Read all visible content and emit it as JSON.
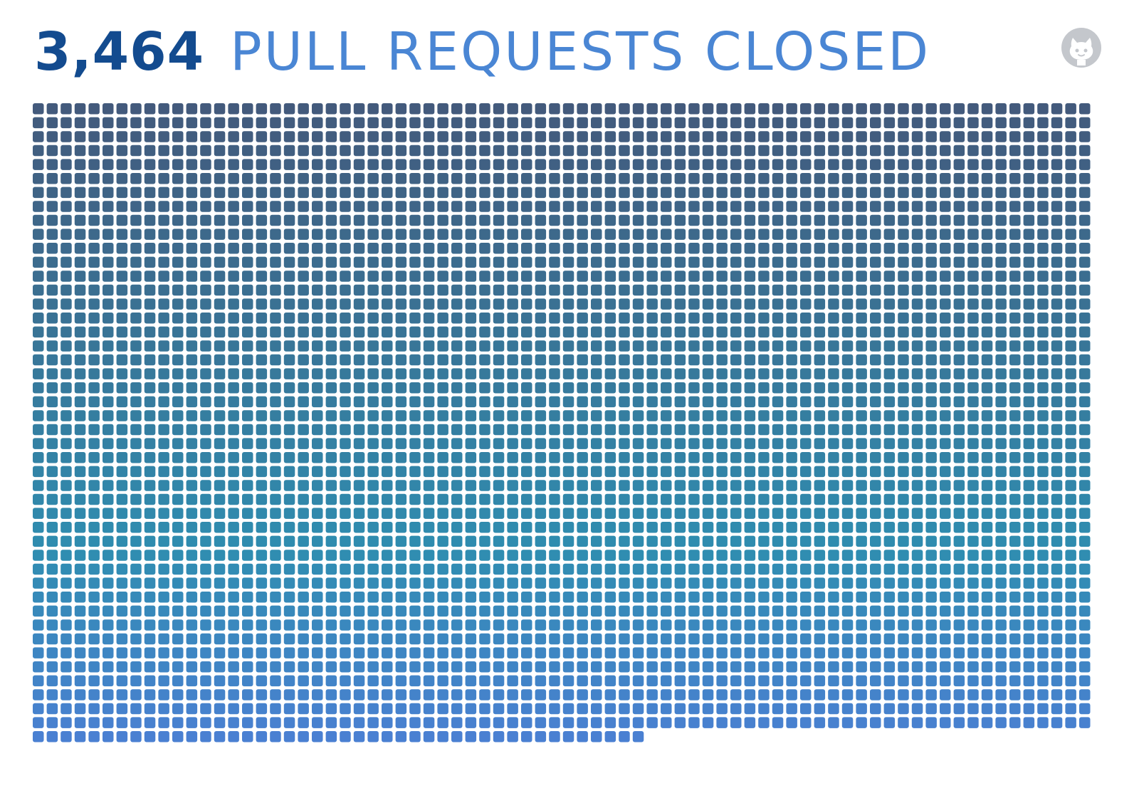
{
  "header": {
    "count": "3,464",
    "label": "PULL REQUESTS CLOSED"
  },
  "logo": {
    "icon": "github-octocat-icon",
    "color": "#c4c7cc"
  },
  "chart_data": {
    "type": "waffle",
    "total": 3464,
    "columns": 76,
    "color_gradient": {
      "top": "#435a7c",
      "middle": "#2f8db0",
      "bottom": "#4a80d2"
    },
    "background": "#ffffff"
  }
}
